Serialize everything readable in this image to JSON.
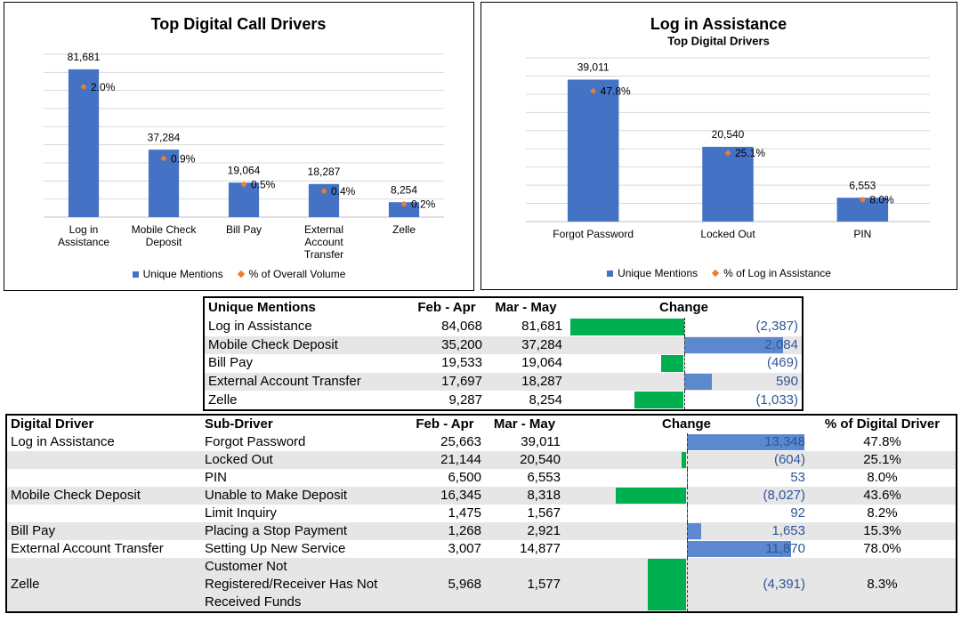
{
  "chart_data": [
    {
      "type": "bar",
      "title": "Top Digital Call Drivers",
      "categories": [
        "Log in Assistance",
        "Mobile Check Deposit",
        "Bill Pay",
        "External Account Transfer",
        "Zelle"
      ],
      "series": [
        {
          "name": "Unique Mentions",
          "color": "#4472c4",
          "values": [
            81681,
            37284,
            19064,
            18287,
            8254
          ],
          "value_labels": [
            "81,681",
            "37,284",
            "19,064",
            "18,287",
            "8,254"
          ]
        },
        {
          "name": "% of Overall Volume",
          "type": "scatter",
          "marker": "diamond",
          "axis": "y2",
          "color": "#ed7d31",
          "values": [
            2.0,
            0.9,
            0.5,
            0.4,
            0.2
          ],
          "value_labels": [
            "2.0%",
            "0.9%",
            "0.5%",
            "0.4%",
            "0.2%"
          ]
        }
      ],
      "ylim": [
        0,
        90000
      ],
      "yticks": [
        0,
        10000,
        20000,
        30000,
        40000,
        50000,
        60000,
        70000,
        80000,
        90000
      ],
      "y2lim": [
        0,
        2.5
      ],
      "grid": true,
      "show_tick_labels": false,
      "legend": "bottom"
    },
    {
      "type": "bar",
      "title": "Log in Assistance",
      "subtitle": "Top Digital Drivers",
      "categories": [
        "Forgot Password",
        "Locked Out",
        "PIN"
      ],
      "series": [
        {
          "name": "Unique Mentions",
          "color": "#4472c4",
          "values": [
            39011,
            20540,
            6553
          ],
          "value_labels": [
            "39,011",
            "20,540",
            "6,553"
          ]
        },
        {
          "name": "% of Log in Assistance",
          "type": "scatter",
          "marker": "diamond",
          "axis": "y2",
          "color": "#ed7d31",
          "values": [
            47.8,
            25.1,
            8.0
          ],
          "value_labels": [
            "47.8%",
            "25.1%",
            "8.0%"
          ]
        }
      ],
      "ylim": [
        0,
        45000
      ],
      "yticks": [
        0,
        5000,
        10000,
        15000,
        20000,
        25000,
        30000,
        35000,
        40000,
        45000
      ],
      "y2lim": [
        0,
        60
      ],
      "grid": true,
      "show_tick_labels": false,
      "legend": "bottom"
    }
  ],
  "tables": [
    {
      "columns": [
        "Unique Mentions",
        "Feb - Apr",
        "Mar - May",
        "Change"
      ],
      "rows": [
        [
          "Log in Assistance",
          "84,068",
          "81,681"
        ],
        [
          "Mobile Check Deposit",
          "35,200",
          "37,284"
        ],
        [
          "Bill Pay",
          "19,533",
          "19,064"
        ],
        [
          "External Account Transfer",
          "17,697",
          "18,287"
        ],
        [
          "Zelle",
          "9,287",
          "8,254"
        ]
      ],
      "change": [
        -2387,
        2084,
        -469,
        590,
        -1033
      ],
      "change_labels": [
        "(2,387)",
        "2,084",
        "(469)",
        "590",
        "(1,033)"
      ],
      "colors": {
        "negative": "#00b050",
        "positive": "#5b88cf"
      }
    },
    {
      "columns": [
        "Digital Driver",
        "Sub-Driver",
        "Feb - Apr",
        "Mar - May",
        "Change",
        "% of Digital Driver"
      ],
      "rows": [
        [
          "Log in Assistance",
          "Forgot Password",
          "25,663",
          "39,011"
        ],
        [
          null,
          "Locked Out",
          "21,144",
          "20,540"
        ],
        [
          null,
          "PIN",
          "6,500",
          "6,553"
        ],
        [
          "Mobile Check Deposit",
          "Unable to Make Deposit",
          "16,345",
          "8,318"
        ],
        [
          null,
          "Limit Inquiry",
          "1,475",
          "1,567"
        ],
        [
          "Bill Pay",
          "Placing a Stop Payment",
          "1,268",
          "2,921"
        ],
        [
          "External Account Transfer",
          "Setting Up New Service",
          "3,007",
          "14,877"
        ],
        [
          "Zelle",
          "Customer Not Registered/Receiver Has Not Received Funds",
          "5,968",
          "1,577"
        ]
      ],
      "change": [
        13348,
        -604,
        53,
        -8027,
        92,
        1653,
        11870,
        -4391
      ],
      "change_labels": [
        "13,348",
        "(604)",
        "53",
        "(8,027)",
        "92",
        "1,653",
        "11,870",
        "(4,391)"
      ],
      "pct": [
        "47.8%",
        "25.1%",
        "8.0%",
        "43.6%",
        "8.2%",
        "15.3%",
        "78.0%",
        "8.3%"
      ],
      "colors": {
        "negative": "#00b050",
        "positive": "#5b88cf"
      }
    }
  ]
}
